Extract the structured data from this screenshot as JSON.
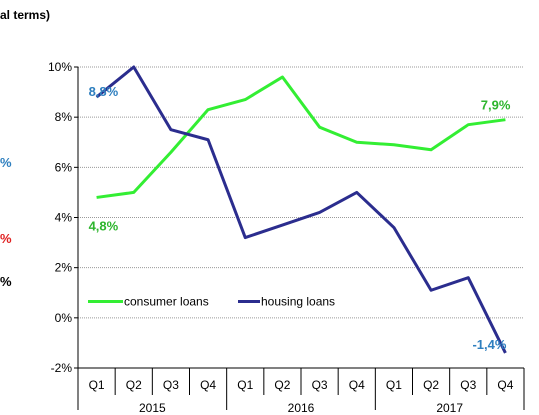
{
  "fragments": {
    "title": "al terms)",
    "edge1": "%",
    "edge2": "%",
    "edge3": "%"
  },
  "chart_data": {
    "type": "line",
    "xlabel": "",
    "ylabel": "",
    "ylim": [
      -2,
      10
    ],
    "yticks": [
      -2,
      0,
      2,
      4,
      6,
      8,
      10
    ],
    "ytick_labels": [
      "-2%",
      "0%",
      "2%",
      "4%",
      "6%",
      "8%",
      "10%"
    ],
    "grid": "horizontal",
    "quarters": [
      "Q1",
      "Q2",
      "Q3",
      "Q4",
      "Q1",
      "Q2",
      "Q3",
      "Q4",
      "Q1",
      "Q2",
      "Q3",
      "Q4"
    ],
    "years": [
      "2015",
      "2016",
      "2017"
    ],
    "legend_position": "lower-left-inside",
    "series": [
      {
        "name": "consumer loans",
        "color": "#33ee33",
        "values": [
          4.8,
          5.0,
          6.6,
          8.3,
          8.7,
          9.6,
          7.6,
          7.0,
          6.9,
          6.7,
          7.7,
          7.9
        ],
        "start_label": "4,8%",
        "end_label": "7,9%",
        "label_color": "#2db52d"
      },
      {
        "name": "housing loans",
        "color": "#2b2d8e",
        "values": [
          8.8,
          10.0,
          7.5,
          7.1,
          3.2,
          3.7,
          4.2,
          5.0,
          3.6,
          1.1,
          1.6,
          -1.4
        ],
        "start_label": "8,8%",
        "end_label": "-1,4%",
        "label_color": "#2e7fbf"
      }
    ]
  }
}
